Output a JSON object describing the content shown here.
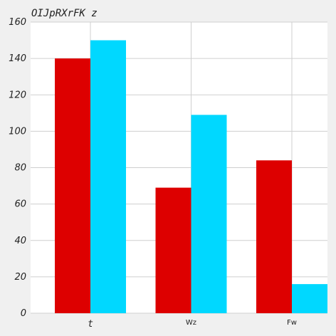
{
  "chart_data": {
    "type": "bar",
    "title": "OIJpRXrFK z",
    "categories": [
      "t",
      "Wz",
      "Fw"
    ],
    "series": [
      {
        "values": [
          140,
          69,
          84
        ],
        "color": "#dd0000"
      },
      {
        "values": [
          150,
          109,
          16
        ],
        "color": "#00d8ff"
      }
    ],
    "xlabel": "",
    "ylabel": "",
    "ylim": [
      0,
      160
    ],
    "yticks": [
      0,
      20,
      40,
      60,
      80,
      100,
      120,
      140,
      160
    ],
    "grid": true,
    "legend": "none"
  },
  "colors": {
    "page_background": "#f0f0f0",
    "plot_background": "#ffffff",
    "grid": "#cfcfcf",
    "text": "#222222"
  }
}
